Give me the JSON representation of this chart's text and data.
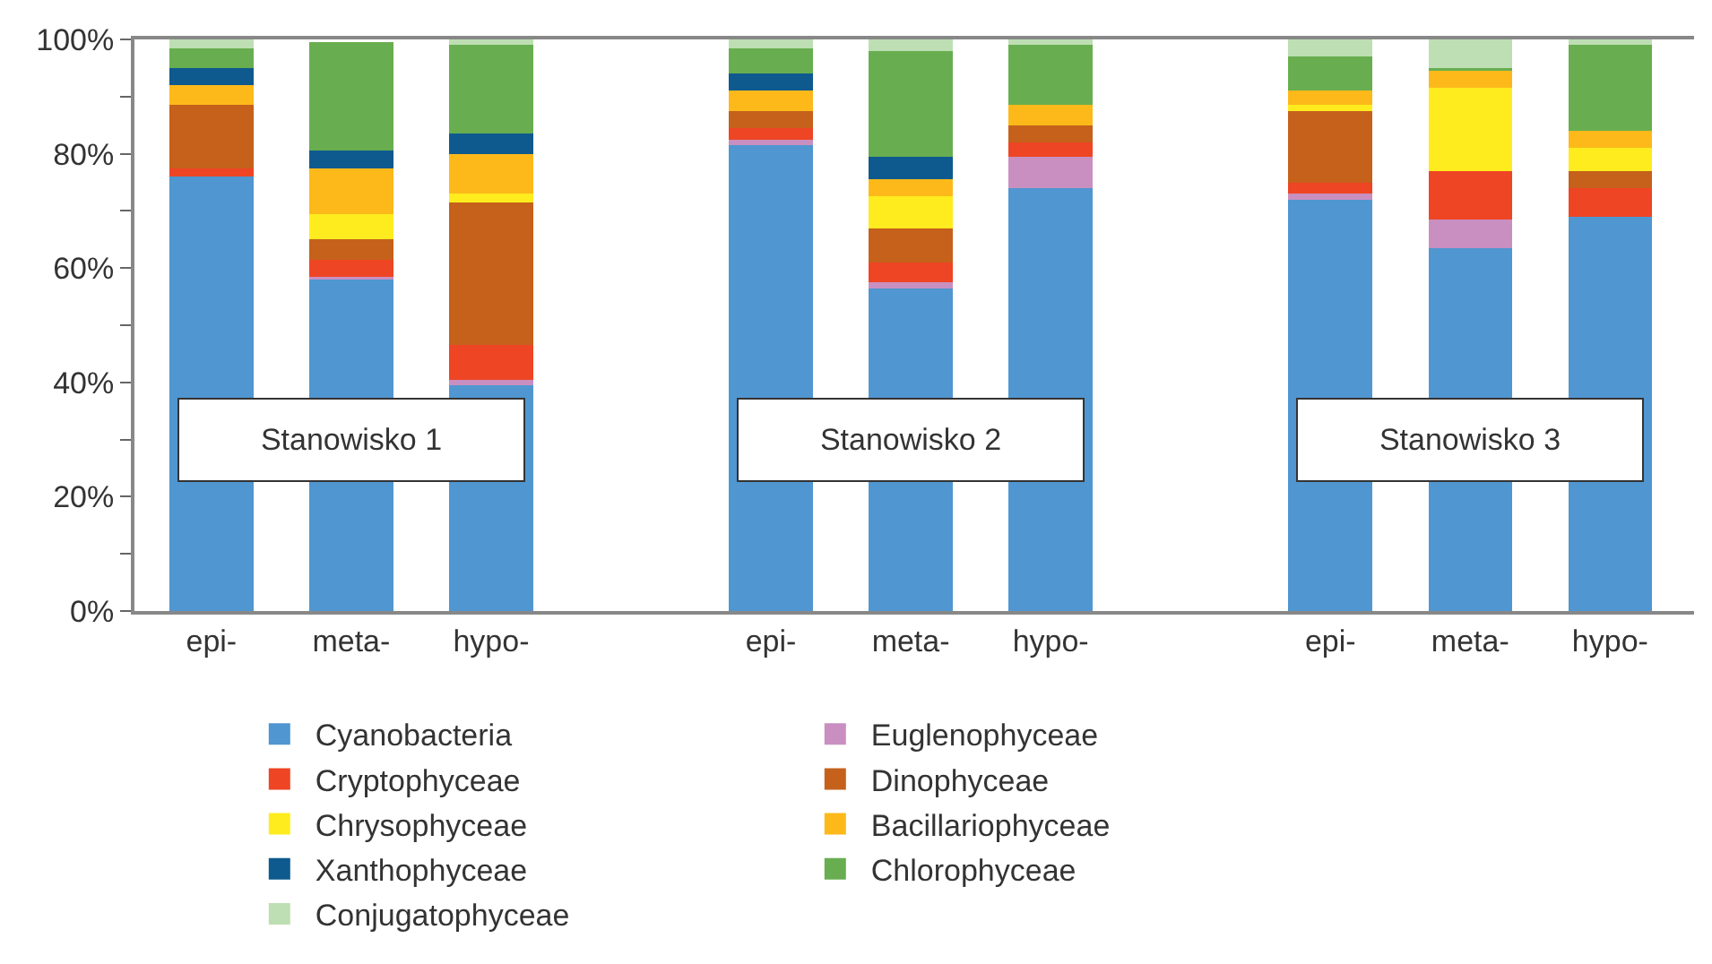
{
  "chart_data": {
    "type": "bar",
    "stacked": true,
    "categories": [
      "epi-",
      "meta-",
      "hypo-",
      null,
      "epi-",
      "meta-",
      "hypo-",
      null,
      "epi-",
      "meta-",
      "hypo-"
    ],
    "series": [
      {
        "name": "Cyanobacteria",
        "color": "#5096d0",
        "values": [
          76,
          58,
          39.5,
          null,
          81.5,
          56.5,
          74,
          null,
          72,
          63.5,
          69
        ]
      },
      {
        "name": "Euglenophyceae",
        "color": "#c98fc0",
        "values": [
          0,
          0.5,
          1,
          null,
          1,
          1,
          5.5,
          null,
          1,
          5,
          0
        ]
      },
      {
        "name": "Cryptophyceae",
        "color": "#ee4524",
        "values": [
          1.5,
          3,
          6,
          null,
          2,
          3.5,
          2.5,
          null,
          2,
          8.5,
          5
        ]
      },
      {
        "name": "Dinophyceae",
        "color": "#c5611b",
        "values": [
          11,
          3.5,
          25,
          null,
          3,
          6,
          3,
          null,
          12.5,
          0,
          3
        ]
      },
      {
        "name": "Chrysophyceae",
        "color": "#ffec1e",
        "values": [
          0,
          4.5,
          1.5,
          null,
          0,
          5.5,
          0,
          null,
          1,
          14.5,
          4
        ]
      },
      {
        "name": "Bacillariophyceae",
        "color": "#fdb91a",
        "values": [
          3.5,
          8,
          7,
          null,
          3.5,
          3,
          3.5,
          null,
          2.5,
          3,
          3
        ]
      },
      {
        "name": "Xanthophyceae",
        "color": "#0e5a8e",
        "values": [
          3,
          3,
          3.5,
          null,
          3,
          4,
          0,
          null,
          0,
          0,
          0
        ]
      },
      {
        "name": "Chlorophyceae",
        "color": "#68ae50",
        "values": [
          3.5,
          19,
          15.5,
          null,
          4.5,
          18.5,
          10.5,
          null,
          6,
          0.5,
          15
        ]
      },
      {
        "name": "Conjugatophyceae",
        "color": "#bddfb3",
        "values": [
          1.5,
          null,
          1,
          null,
          1.5,
          2,
          1,
          null,
          3,
          5,
          1
        ]
      }
    ],
    "ylim": [
      0,
      100
    ],
    "yticks": [
      {
        "value": 0,
        "label": "0%"
      },
      {
        "value": 10,
        "label": null
      },
      {
        "value": 20,
        "label": "20%"
      },
      {
        "value": 30,
        "label": null
      },
      {
        "value": 40,
        "label": "40%"
      },
      {
        "value": 50,
        "label": null
      },
      {
        "value": 60,
        "label": "60%"
      },
      {
        "value": 70,
        "label": null
      },
      {
        "value": 80,
        "label": "80%"
      },
      {
        "value": 90,
        "label": null
      },
      {
        "value": 100,
        "label": "100%"
      }
    ],
    "annotations": [
      "Stanowisko 1",
      "Stanowisko 2",
      "Stanowisko 3"
    ],
    "legend": "bottom",
    "grid": false
  }
}
